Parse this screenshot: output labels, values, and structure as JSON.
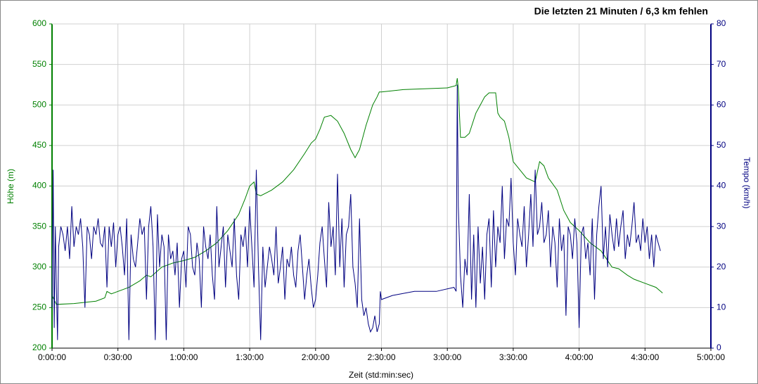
{
  "chart_data": {
    "type": "line",
    "title": "Die letzten 21 Minuten / 6,3 km fehlen",
    "xlabel": "Zeit (std:min:sec)",
    "ylabel": "Höhe (m)",
    "y2label": "Tempo (km/h)",
    "grid": true,
    "xlim": [
      0,
      300
    ],
    "xticks": [
      {
        "value": 0,
        "label": "0:00:00"
      },
      {
        "value": 30,
        "label": "0:30:00"
      },
      {
        "value": 60,
        "label": "1:00:00"
      },
      {
        "value": 90,
        "label": "1:30:00"
      },
      {
        "value": 120,
        "label": "2:00:00"
      },
      {
        "value": 150,
        "label": "2:30:00"
      },
      {
        "value": 180,
        "label": "3:00:00"
      },
      {
        "value": 210,
        "label": "3:30:00"
      },
      {
        "value": 240,
        "label": "4:00:00"
      },
      {
        "value": 270,
        "label": "4:30:00"
      },
      {
        "value": 300,
        "label": "5:00:00"
      }
    ],
    "ylim": [
      200,
      600
    ],
    "yticks": [
      200,
      250,
      300,
      350,
      400,
      450,
      500,
      550,
      600
    ],
    "y2lim": [
      0,
      80
    ],
    "y2ticks": [
      0,
      10,
      20,
      30,
      40,
      50,
      60,
      70,
      80
    ],
    "series": [
      {
        "color": "#008000",
        "axis": "y",
        "x": [
          0,
          2,
          10,
          20,
          24,
          25,
          27,
          35,
          40,
          43,
          45,
          50,
          55,
          60,
          65,
          70,
          75,
          80,
          85,
          88,
          90,
          92,
          93,
          95,
          100,
          105,
          110,
          115,
          118,
          120,
          122,
          124,
          127,
          130,
          133,
          136,
          138,
          140,
          143,
          146,
          148,
          149,
          150,
          160,
          180,
          184,
          184.5,
          185,
          186,
          188,
          190,
          193,
          195,
          197,
          199,
          202,
          203,
          204,
          206,
          208,
          210,
          213,
          216,
          220,
          222,
          224,
          226,
          230,
          233,
          236,
          240,
          245,
          250,
          255,
          258,
          262,
          265,
          270,
          275,
          278
        ],
        "values": [
          265,
          254,
          255,
          258,
          262,
          270,
          267,
          275,
          283,
          290,
          288,
          300,
          305,
          308,
          312,
          320,
          330,
          345,
          365,
          385,
          400,
          405,
          390,
          388,
          395,
          405,
          420,
          440,
          453,
          458,
          470,
          485,
          487,
          480,
          465,
          445,
          435,
          445,
          475,
          500,
          510,
          516,
          516,
          519,
          521,
          524,
          533,
          520,
          460,
          460,
          465,
          490,
          500,
          510,
          515,
          515,
          490,
          485,
          480,
          460,
          430,
          420,
          410,
          405,
          430,
          425,
          410,
          395,
          370,
          355,
          345,
          330,
          320,
          300,
          298,
          290,
          285,
          280,
          275,
          268
        ]
      },
      {
        "color": "#000080",
        "axis": "y2",
        "x": [
          0,
          0.5,
          1,
          1.5,
          2,
          2.5,
          3,
          4,
          5,
          6,
          7,
          8,
          9,
          10,
          11,
          12,
          13,
          14,
          15,
          16,
          17,
          18,
          19,
          20,
          21,
          22,
          23,
          24,
          25,
          26,
          27,
          28,
          29,
          30,
          31,
          32,
          33,
          34,
          35,
          36,
          37,
          38,
          39,
          40,
          41,
          42,
          43,
          44,
          45,
          46,
          47,
          48,
          49,
          50,
          51,
          52,
          53,
          54,
          55,
          56,
          57,
          58,
          59,
          60,
          61,
          62,
          63,
          64,
          65,
          66,
          67,
          68,
          69,
          70,
          71,
          72,
          73,
          74,
          75,
          76,
          77,
          78,
          79,
          80,
          81,
          82,
          83,
          84,
          85,
          86,
          87,
          88,
          89,
          90,
          91,
          92,
          93,
          94,
          95,
          96,
          97,
          98,
          99,
          100,
          101,
          102,
          103,
          104,
          105,
          106,
          107,
          108,
          109,
          110,
          111,
          112,
          113,
          114,
          115,
          116,
          117,
          118,
          119,
          120,
          121,
          122,
          123,
          124,
          125,
          126,
          127,
          128,
          129,
          130,
          131,
          132,
          133,
          134,
          135,
          136,
          137,
          138,
          139,
          140,
          141,
          142,
          143,
          144,
          145,
          146,
          147,
          148,
          149,
          149.5,
          150,
          155,
          165,
          175,
          183,
          184,
          184.5,
          185,
          186,
          187,
          188,
          189,
          190,
          191,
          192,
          193,
          194,
          195,
          196,
          197,
          198,
          199,
          200,
          201,
          202,
          203,
          204,
          205,
          206,
          207,
          208,
          209,
          210,
          211,
          212,
          213,
          214,
          215,
          216,
          217,
          218,
          219,
          220,
          221,
          222,
          223,
          224,
          225,
          226,
          227,
          228,
          229,
          230,
          231,
          232,
          233,
          234,
          235,
          236,
          237,
          238,
          239,
          240,
          241,
          242,
          243,
          244,
          245,
          246,
          247,
          248,
          249,
          250,
          251,
          252,
          253,
          254,
          255,
          256,
          257,
          258,
          259,
          260,
          261,
          262,
          263,
          264,
          265,
          266,
          267,
          268,
          269,
          270,
          271,
          272,
          273,
          274,
          275,
          276,
          277
        ],
        "values": [
          10,
          44,
          5,
          30,
          15,
          2,
          25,
          30,
          28,
          24,
          30,
          22,
          35,
          25,
          30,
          28,
          32,
          25,
          10,
          30,
          28,
          22,
          30,
          28,
          32,
          26,
          25,
          30,
          15,
          30,
          25,
          31,
          20,
          28,
          30,
          25,
          18,
          32,
          2,
          28,
          22,
          20,
          26,
          32,
          28,
          30,
          12,
          30,
          35,
          25,
          2,
          33,
          20,
          28,
          25,
          2,
          28,
          22,
          24,
          18,
          26,
          10,
          22,
          24,
          15,
          30,
          28,
          20,
          18,
          26,
          22,
          10,
          30,
          25,
          22,
          28,
          18,
          12,
          35,
          20,
          25,
          30,
          15,
          28,
          24,
          20,
          32,
          18,
          12,
          28,
          25,
          30,
          20,
          35,
          25,
          15,
          44,
          20,
          2,
          25,
          15,
          20,
          25,
          22,
          18,
          30,
          16,
          20,
          25,
          12,
          22,
          20,
          25,
          18,
          15,
          24,
          28,
          20,
          12,
          18,
          22,
          15,
          10,
          12,
          18,
          26,
          30,
          22,
          15,
          36,
          25,
          30,
          18,
          43,
          20,
          32,
          15,
          28,
          30,
          38,
          20,
          16,
          10,
          32,
          12,
          8,
          10,
          6,
          4,
          5,
          8,
          4,
          6,
          14,
          12,
          13,
          14,
          14,
          15,
          14,
          65,
          35,
          18,
          10,
          22,
          18,
          38,
          12,
          28,
          10,
          30,
          16,
          25,
          12,
          28,
          32,
          15,
          34,
          20,
          30,
          26,
          40,
          22,
          32,
          30,
          42,
          26,
          18,
          32,
          28,
          25,
          35,
          20,
          28,
          38,
          25,
          44,
          28,
          30,
          36,
          26,
          28,
          34,
          20,
          30,
          26,
          15,
          32,
          24,
          28,
          8,
          30,
          28,
          22,
          32,
          26,
          5,
          28,
          30,
          22,
          26,
          18,
          32,
          12,
          28,
          35,
          40,
          22,
          30,
          20,
          33,
          28,
          24,
          32,
          25,
          30,
          34,
          22,
          28,
          25,
          30,
          36,
          26,
          28,
          24,
          32,
          26,
          30,
          22,
          28,
          20,
          28,
          26,
          24
        ]
      }
    ]
  }
}
